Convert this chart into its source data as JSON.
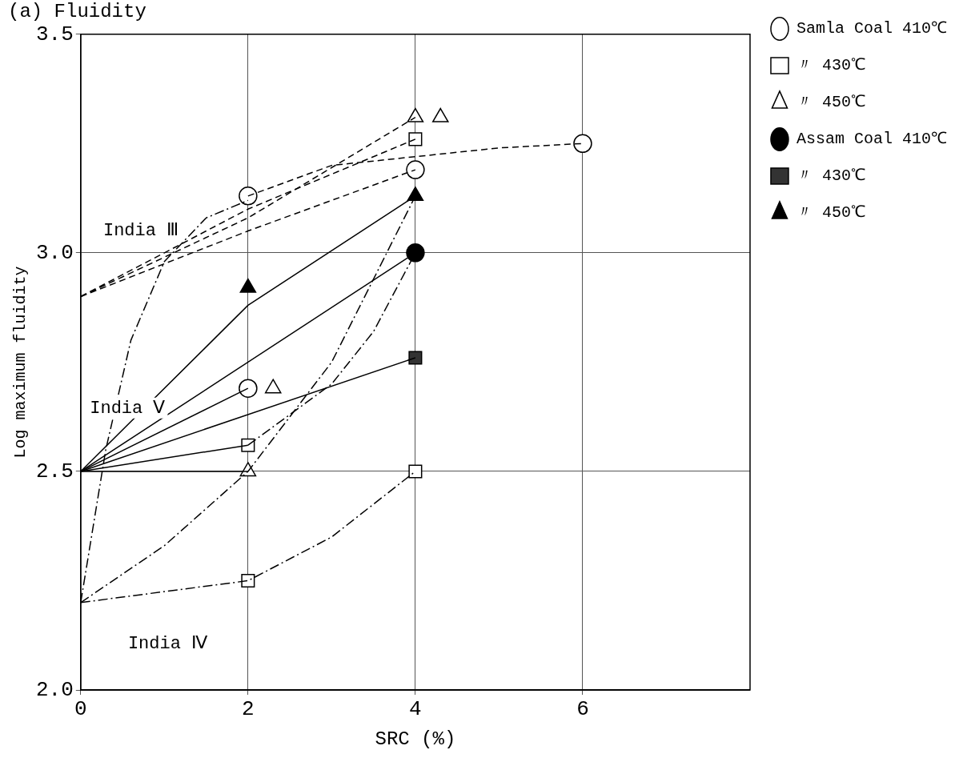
{
  "chart_data": {
    "type": "scatter",
    "title": "(a) Fluidity",
    "xlabel": "SRC (%)",
    "ylabel": "Log maximum fluidity",
    "xlim": [
      0,
      8
    ],
    "xticks": [
      0,
      2,
      4,
      6
    ],
    "ylim": [
      2.0,
      3.5
    ],
    "yticks": [
      {
        "value": 2.0,
        "label": "2.0"
      },
      {
        "value": 2.5,
        "label": "2.5"
      },
      {
        "value": 3.0,
        "label": "3.0"
      },
      {
        "value": 3.5,
        "label": "3.5"
      }
    ],
    "grid": true,
    "legend": "right",
    "annotations": [
      "India Ⅲ",
      "India Ⅴ",
      "India Ⅳ"
    ],
    "series": [
      {
        "type": "line",
        "line_style": "dashed",
        "color": "#000000",
        "x": [
          0,
          2,
          4
        ],
        "values": [
          2.9,
          3.1,
          3.26
        ]
      },
      {
        "type": "line",
        "line_style": "dashed",
        "color": "#000000",
        "x": [
          0,
          2,
          4
        ],
        "values": [
          2.9,
          3.05,
          3.19
        ]
      },
      {
        "type": "line",
        "line_style": "dashed",
        "color": "#000000",
        "x": [
          0,
          2,
          4
        ],
        "values": [
          2.9,
          3.08,
          3.31
        ]
      },
      {
        "type": "line",
        "line_style": "dashed",
        "color": "#000000",
        "x": [
          2,
          3,
          4,
          5,
          6
        ],
        "values": [
          3.13,
          3.2,
          3.22,
          3.24,
          3.25
        ]
      },
      {
        "type": "line",
        "line_style": "solid",
        "color": "#000000",
        "x": [
          0,
          2,
          4
        ],
        "values": [
          2.5,
          2.88,
          3.13
        ]
      },
      {
        "type": "line",
        "line_style": "solid",
        "color": "#000000",
        "x": [
          0,
          4
        ],
        "values": [
          2.5,
          3.0
        ]
      },
      {
        "type": "line",
        "line_style": "solid",
        "color": "#000000",
        "x": [
          0,
          4
        ],
        "values": [
          2.5,
          2.76
        ]
      },
      {
        "type": "line",
        "line_style": "solid",
        "color": "#000000",
        "x": [
          0,
          2
        ],
        "values": [
          2.5,
          2.69
        ]
      },
      {
        "type": "line",
        "line_style": "solid",
        "color": "#000000",
        "x": [
          0,
          2
        ],
        "values": [
          2.5,
          2.56
        ]
      },
      {
        "type": "line",
        "line_style": "solid",
        "color": "#000000",
        "x": [
          0,
          2
        ],
        "values": [
          2.5,
          2.5
        ]
      },
      {
        "type": "line",
        "line_style": "dotted",
        "color": "#000000",
        "x": [
          0,
          2,
          3,
          4
        ],
        "values": [
          2.2,
          2.25,
          2.35,
          2.5
        ]
      },
      {
        "type": "line",
        "line_style": "dotted",
        "color": "#000000",
        "x": [
          0,
          1,
          2,
          3,
          4
        ],
        "values": [
          2.2,
          2.33,
          2.5,
          2.75,
          3.13
        ]
      },
      {
        "type": "line",
        "line_style": "dotted",
        "color": "#000000",
        "x": [
          0,
          0.3,
          0.6,
          1,
          1.5,
          2
        ],
        "values": [
          2.2,
          2.55,
          2.8,
          2.98,
          3.08,
          3.12
        ]
      },
      {
        "type": "line",
        "line_style": "dotted",
        "color": "#000000",
        "x": [
          2,
          3,
          3.5,
          4
        ],
        "values": [
          2.56,
          2.7,
          2.82,
          3.0
        ]
      },
      {
        "name": "Samla Coal 410℃",
        "marker": "circle",
        "color": "#ffffff",
        "x": [
          2,
          4,
          6,
          2
        ],
        "values": [
          3.13,
          3.19,
          3.25,
          2.69
        ]
      },
      {
        "name": "〃 430℃",
        "marker": "square",
        "color": "#ffffff",
        "x": [
          4,
          2,
          4,
          2
        ],
        "values": [
          3.26,
          2.56,
          2.5,
          2.25
        ]
      },
      {
        "name": "〃 450℃",
        "marker": "triangle",
        "color": "#ffffff",
        "x": [
          4,
          4.3,
          2.3,
          2
        ],
        "values": [
          3.31,
          3.31,
          2.69,
          2.5
        ]
      },
      {
        "name": "Assam Coal 410℃",
        "marker": "circle",
        "color": "#000000",
        "x": [
          4
        ],
        "values": [
          3.0
        ]
      },
      {
        "name": "〃 430℃",
        "marker": "square",
        "color": "#333333",
        "x": [
          4
        ],
        "values": [
          2.76
        ]
      },
      {
        "name": "〃 450℃",
        "marker": "triangle",
        "color": "#000000",
        "x": [
          2,
          4
        ],
        "values": [
          2.92,
          3.13
        ]
      }
    ]
  }
}
